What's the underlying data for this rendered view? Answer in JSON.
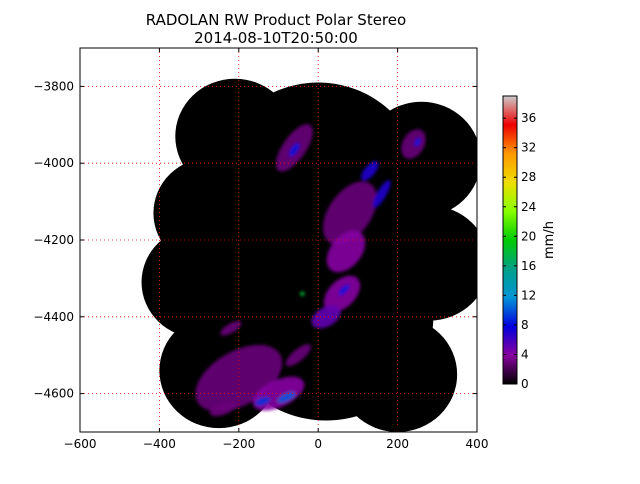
{
  "chart_data": {
    "type": "heatmap",
    "title": "RADOLAN RW Product Polar Stereo",
    "subtitle": "2014-08-10T20:50:00",
    "xlabel": "",
    "ylabel": "",
    "xlim": [
      -600,
      400
    ],
    "ylim": [
      -4700,
      -3700
    ],
    "x_ticks": [
      -600,
      -400,
      -200,
      0,
      200,
      400
    ],
    "y_ticks": [
      -3800,
      -4000,
      -4200,
      -4400,
      -4600
    ],
    "x_tick_labels": [
      "−600",
      "−400",
      "−200",
      "0",
      "200",
      "400"
    ],
    "y_tick_labels": [
      "−3800",
      "−4000",
      "−4200",
      "−4400",
      "−4600"
    ],
    "grid": true,
    "grid_color": "#ff0000",
    "colorbar": {
      "label": "mm/h",
      "min": 0,
      "max": 39,
      "ticks": [
        0,
        4,
        8,
        12,
        16,
        20,
        24,
        28,
        32,
        36
      ],
      "colormap": "spectral",
      "stops": [
        "#000000",
        "#8a00a0",
        "#0000dd",
        "#0095d8",
        "#00a088",
        "#00cc00",
        "#88ff00",
        "#eedd00",
        "#ff9900",
        "#ee0000",
        "#cccccc"
      ]
    },
    "background_value_color": "#000000",
    "coverage_circles": [
      {
        "cx": -210,
        "cy": -3930,
        "r": 150
      },
      {
        "cx": -270,
        "cy": -4130,
        "r": 145
      },
      {
        "cx": -300,
        "cy": -4310,
        "r": 145
      },
      {
        "cx": -250,
        "cy": -4540,
        "r": 150
      },
      {
        "cx": 260,
        "cy": -3990,
        "r": 150
      },
      {
        "cx": 280,
        "cy": -4260,
        "r": 150
      },
      {
        "cx": 200,
        "cy": -4550,
        "r": 150
      },
      {
        "cx": 0,
        "cy": -4050,
        "r": 260
      },
      {
        "cx": 20,
        "cy": -4400,
        "r": 270
      }
    ],
    "precip_cells": [
      {
        "x": 80,
        "y": -4130,
        "rx": 90,
        "ry": 55,
        "rot": -55,
        "value": 3
      },
      {
        "x": 130,
        "y": -4020,
        "rx": 30,
        "ry": 14,
        "rot": -50,
        "value": 7
      },
      {
        "x": 160,
        "y": -4080,
        "rx": 40,
        "ry": 12,
        "rot": -60,
        "value": 7
      },
      {
        "x": 240,
        "y": -3950,
        "rx": 40,
        "ry": 28,
        "rot": -60,
        "value": 3
      },
      {
        "x": 250,
        "y": -3945,
        "rx": 12,
        "ry": 7,
        "rot": -60,
        "value": 8
      },
      {
        "x": -60,
        "y": -3960,
        "rx": 70,
        "ry": 30,
        "rot": -55,
        "value": 3
      },
      {
        "x": -60,
        "y": -3965,
        "rx": 20,
        "ry": 9,
        "rot": -55,
        "value": 8
      },
      {
        "x": 70,
        "y": -4230,
        "rx": 60,
        "ry": 40,
        "rot": -50,
        "value": 4
      },
      {
        "x": 60,
        "y": -4340,
        "rx": 55,
        "ry": 35,
        "rot": -45,
        "value": 4
      },
      {
        "x": 65,
        "y": -4330,
        "rx": 18,
        "ry": 8,
        "rot": -45,
        "value": 8
      },
      {
        "x": -40,
        "y": -4340,
        "rx": 6,
        "ry": 6,
        "rot": 0,
        "value": 18
      },
      {
        "x": 20,
        "y": -4400,
        "rx": 40,
        "ry": 25,
        "rot": -30,
        "value": 5
      },
      {
        "x": -220,
        "y": -4430,
        "rx": 30,
        "ry": 12,
        "rot": -30,
        "value": 3
      },
      {
        "x": -200,
        "y": -4560,
        "rx": 120,
        "ry": 70,
        "rot": -30,
        "value": 3
      },
      {
        "x": -100,
        "y": -4600,
        "rx": 70,
        "ry": 35,
        "rot": -25,
        "value": 4
      },
      {
        "x": -80,
        "y": -4610,
        "rx": 25,
        "ry": 10,
        "rot": -25,
        "value": 10
      },
      {
        "x": -140,
        "y": -4620,
        "rx": 20,
        "ry": 10,
        "rot": -20,
        "value": 9
      },
      {
        "x": -50,
        "y": -4500,
        "rx": 40,
        "ry": 15,
        "rot": -40,
        "value": 3
      },
      {
        "x": -240,
        "y": -4640,
        "rx": 35,
        "ry": 15,
        "rot": -20,
        "value": 3
      }
    ]
  }
}
